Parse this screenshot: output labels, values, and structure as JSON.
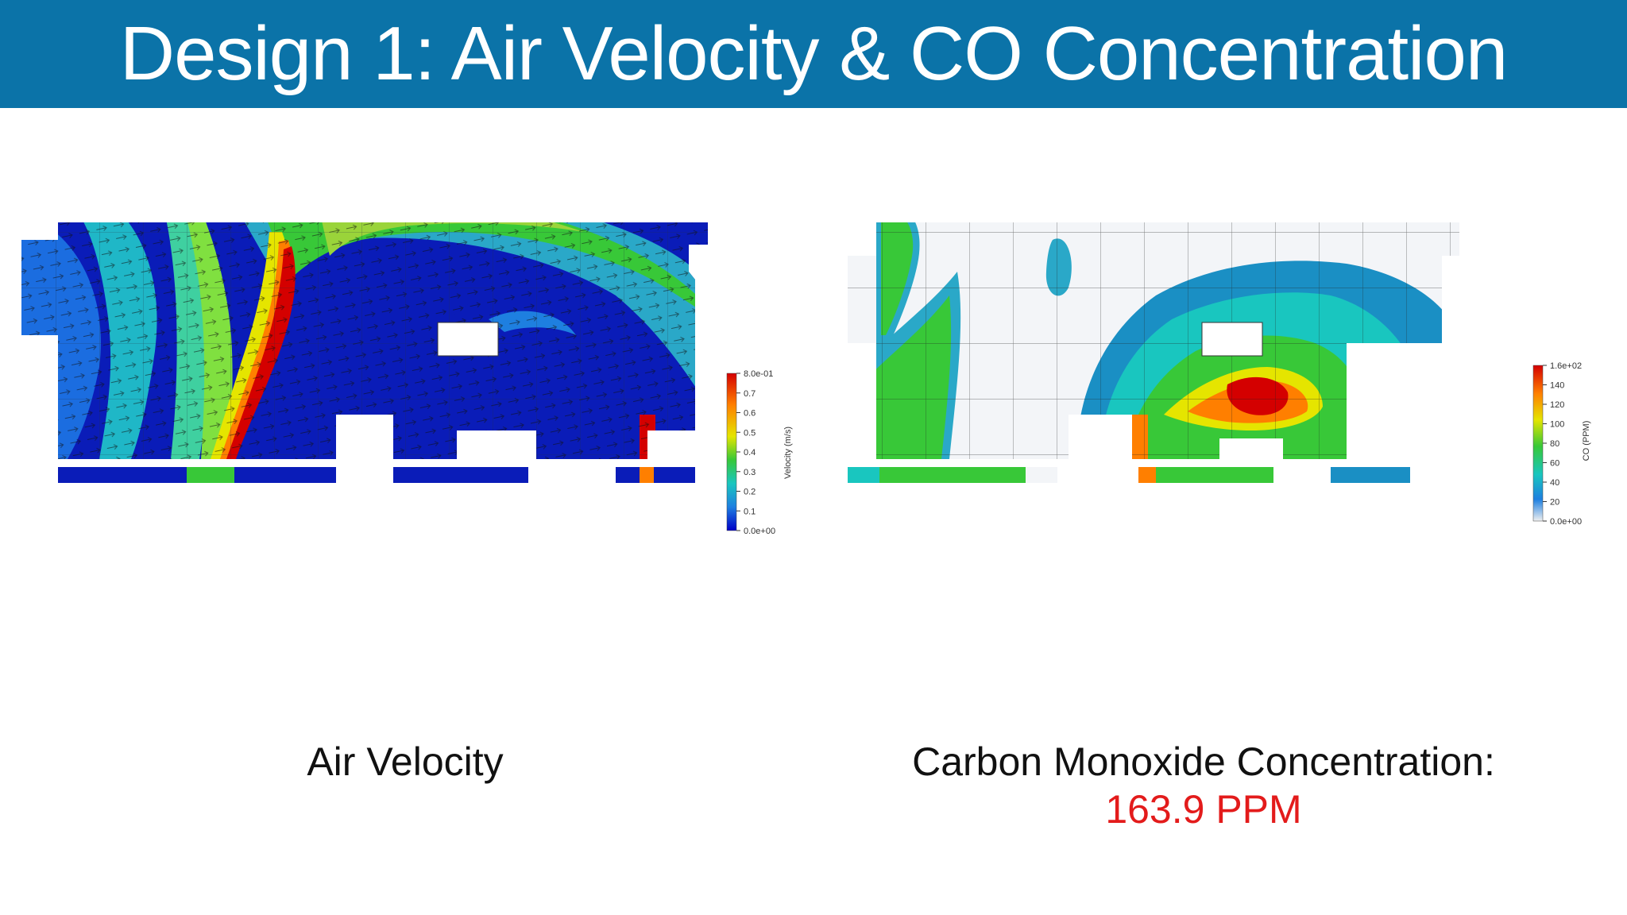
{
  "title": "Design 1: Air Velocity & CO Concentration",
  "left_panel": {
    "caption": "Air Velocity",
    "colorbar": {
      "title": "Velocity (m/s)",
      "ticks": [
        "8.0e-01",
        "0.7",
        "0.6",
        "0.5",
        "0.4",
        "0.3",
        "0.2",
        "0.1",
        "0.0e+00"
      ]
    }
  },
  "right_panel": {
    "caption": "Carbon Monoxide Concentration:",
    "value": "163.9 PPM",
    "colorbar": {
      "title": "CO (PPM)",
      "ticks": [
        "1.6e+02",
        "140",
        "120",
        "100",
        "80",
        "60",
        "40",
        "20",
        "0.0e+00"
      ]
    }
  },
  "colors": {
    "banner": "#0b73a8",
    "highlight_value": "#e31b1b"
  }
}
